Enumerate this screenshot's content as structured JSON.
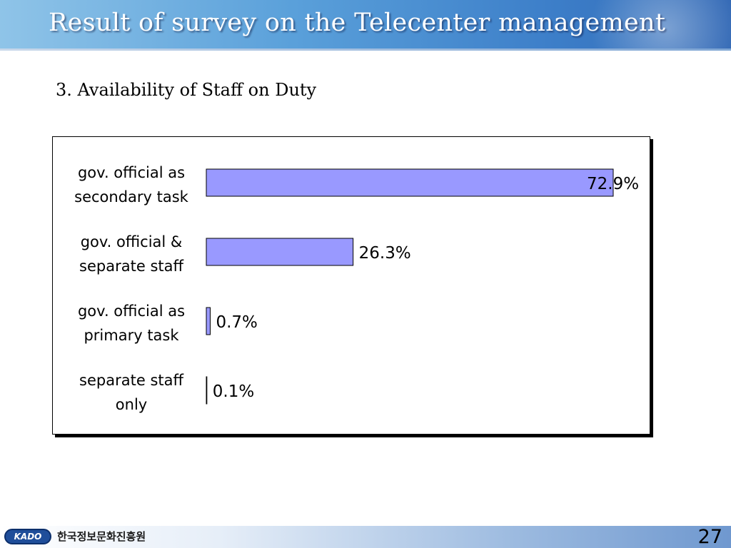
{
  "header": {
    "title": "Result of survey on the Telecenter management"
  },
  "subtitle": "3. Availability of Staff on Duty",
  "chart_data": {
    "type": "bar",
    "orientation": "horizontal",
    "title": "",
    "xlabel": "",
    "ylabel": "",
    "categories": [
      [
        "gov. official as",
        "secondary task"
      ],
      [
        "gov. official &",
        "separate staff"
      ],
      [
        "gov. official as",
        "primary task"
      ],
      [
        "separate staff",
        "only"
      ]
    ],
    "values": [
      72.9,
      26.3,
      0.7,
      0.1
    ],
    "value_labels": [
      "72.9%",
      "26.3%",
      "0.7%",
      "0.1%"
    ],
    "xlim": [
      0,
      80
    ],
    "grid": false,
    "legend": "none",
    "bar_color": "#9999ff"
  },
  "footer": {
    "logo_text": "KADO",
    "org_name": "한국정보문화진흥원",
    "page_number": "27"
  }
}
